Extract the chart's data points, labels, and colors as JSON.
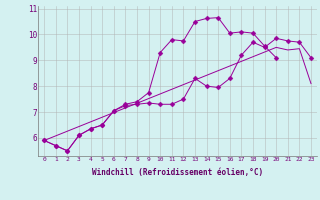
{
  "xlabel": "Windchill (Refroidissement éolien,°C)",
  "x_values": [
    0,
    1,
    2,
    3,
    4,
    5,
    6,
    7,
    8,
    9,
    10,
    11,
    12,
    13,
    14,
    15,
    16,
    17,
    18,
    19,
    20,
    21,
    22,
    23
  ],
  "line_zigzag_y": [
    5.9,
    5.7,
    5.5,
    6.1,
    6.35,
    6.5,
    7.05,
    7.25,
    7.3,
    7.35,
    7.3,
    7.3,
    7.5,
    8.3,
    8.0,
    7.95,
    8.3,
    9.2,
    9.7,
    9.5,
    9.85,
    9.75,
    9.7,
    9.1
  ],
  "line_upper_y": [
    5.9,
    5.7,
    5.5,
    6.1,
    6.35,
    6.5,
    7.05,
    7.3,
    7.4,
    7.75,
    9.3,
    9.8,
    9.75,
    10.5,
    10.62,
    10.65,
    10.05,
    10.1,
    10.05,
    9.55,
    9.1,
    null,
    null,
    null
  ],
  "line_lower_y": [
    5.9,
    null,
    null,
    null,
    null,
    null,
    null,
    null,
    null,
    null,
    null,
    null,
    null,
    null,
    null,
    null,
    null,
    null,
    null,
    null,
    9.5,
    9.4,
    9.45,
    8.1
  ],
  "line_color": "#990099",
  "marker": "D",
  "marker_size": 2.5,
  "bg_color": "#d4f1f1",
  "grid_color": "#b0b0b0",
  "ylim": [
    5.3,
    11.1
  ],
  "xlim": [
    -0.5,
    23.5
  ],
  "tick_label_color": "#770077",
  "xlabel_color": "#660066",
  "yticks": [
    6,
    7,
    8,
    9,
    10,
    11
  ],
  "xticks": [
    0,
    1,
    2,
    3,
    4,
    5,
    6,
    7,
    8,
    9,
    10,
    11,
    12,
    13,
    14,
    15,
    16,
    17,
    18,
    19,
    20,
    21,
    22,
    23
  ]
}
